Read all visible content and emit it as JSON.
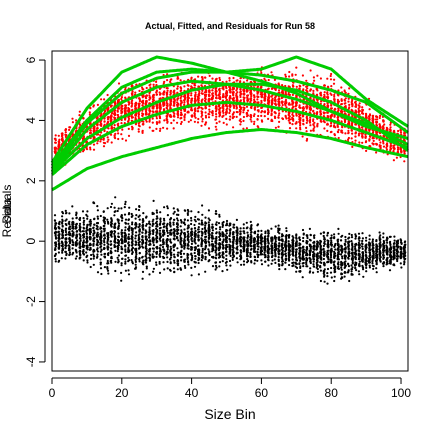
{
  "chart_data": {
    "type": "scatter",
    "title": "Actual, Fitted, and Residuals for Run 58",
    "xlabel": "Size Bin",
    "ylabel": "Residuals",
    "ylabel_overlay": "Data",
    "xlim": [
      0,
      102
    ],
    "ylim": [
      -4.3,
      6.3
    ],
    "x_ticks": [
      0,
      20,
      40,
      60,
      80,
      100
    ],
    "x_tick_labels": [
      "0",
      "20",
      "40",
      "60",
      "80",
      "100"
    ],
    "y_ticks": [
      -4,
      -2,
      0,
      2,
      4,
      6
    ],
    "y_tick_labels": [
      "-4",
      "-2",
      "0",
      "2",
      "4",
      "6"
    ],
    "grid": false,
    "legend": "none",
    "colors": {
      "actual": "#ff0000",
      "fitted": "#00cc00",
      "residuals": "#000000"
    },
    "series": [
      {
        "role": "actual",
        "marker": "points",
        "approx_band": {
          "x": [
            0,
            20,
            40,
            60,
            80,
            100
          ],
          "low": [
            2.3,
            3.2,
            3.6,
            3.6,
            3.1,
            2.5
          ],
          "high": [
            3.6,
            5.5,
            5.8,
            5.9,
            5.7,
            4.0
          ]
        }
      },
      {
        "role": "fitted",
        "marker": "line",
        "curves": [
          {
            "x": [
              0,
              10,
              20,
              30,
              40,
              50,
              60,
              70,
              80,
              90,
              102
            ],
            "y": [
              2.6,
              4.4,
              5.6,
              6.1,
              5.9,
              5.6,
              5.7,
              6.1,
              5.7,
              4.7,
              3.8
            ]
          },
          {
            "x": [
              0,
              10,
              20,
              30,
              40,
              50,
              60,
              70,
              80,
              90,
              102
            ],
            "y": [
              2.5,
              4.0,
              5.1,
              5.6,
              5.7,
              5.6,
              5.5,
              5.3,
              5.0,
              4.6,
              3.6
            ]
          },
          {
            "x": [
              0,
              10,
              20,
              30,
              40,
              50,
              60,
              70,
              80,
              90,
              102
            ],
            "y": [
              2.4,
              3.9,
              4.9,
              5.4,
              5.6,
              5.6,
              5.3,
              4.9,
              4.3,
              3.8,
              3.4
            ]
          },
          {
            "x": [
              0,
              10,
              20,
              30,
              40,
              50,
              60,
              70,
              80,
              90,
              102
            ],
            "y": [
              2.3,
              3.7,
              4.6,
              5.1,
              5.3,
              5.2,
              5.0,
              4.7,
              4.3,
              3.9,
              3.2
            ]
          },
          {
            "x": [
              0,
              10,
              20,
              30,
              40,
              50,
              60,
              70,
              80,
              90,
              102
            ],
            "y": [
              2.3,
              3.4,
              4.1,
              4.6,
              5.0,
              5.2,
              5.2,
              5.0,
              4.6,
              4.0,
              3.0
            ]
          },
          {
            "x": [
              0,
              10,
              20,
              30,
              40,
              50,
              60,
              70,
              80,
              90,
              102
            ],
            "y": [
              2.2,
              3.2,
              3.8,
              4.2,
              4.5,
              4.6,
              4.5,
              4.3,
              4.0,
              3.6,
              3.1
            ]
          },
          {
            "x": [
              0,
              10,
              20,
              30,
              40,
              50,
              60,
              70,
              80,
              90,
              102
            ],
            "y": [
              1.7,
              2.4,
              2.8,
              3.1,
              3.4,
              3.6,
              3.7,
              3.6,
              3.4,
              3.1,
              2.8
            ]
          }
        ]
      },
      {
        "role": "residuals",
        "marker": "points",
        "approx_band": {
          "x": [
            0,
            20,
            40,
            60,
            80,
            100
          ],
          "low": [
            -0.8,
            -1.5,
            -1.3,
            -0.9,
            -1.6,
            -1.0
          ],
          "high": [
            1.2,
            1.6,
            1.4,
            0.7,
            0.6,
            0.4
          ]
        }
      }
    ]
  }
}
